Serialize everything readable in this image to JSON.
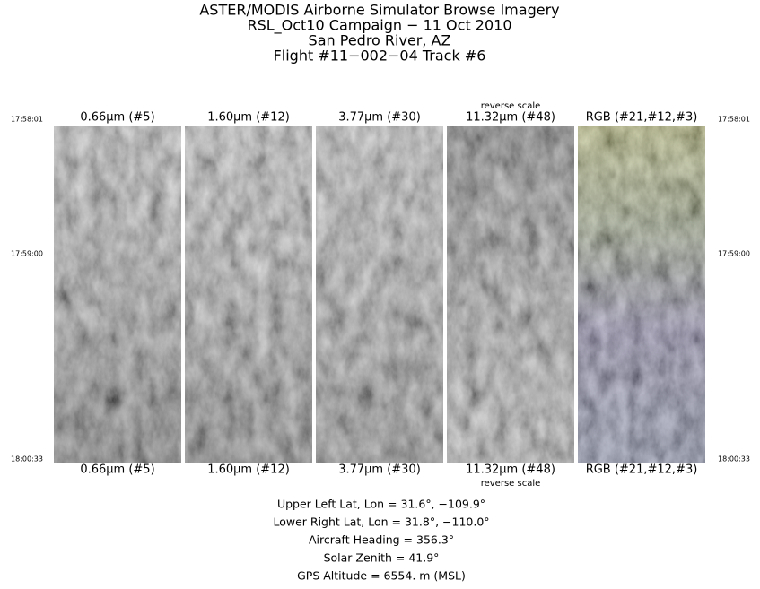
{
  "header": {
    "lines": [
      "ASTER/MODIS Airborne Simulator Browse Imagery",
      "RSL_Oct10 Campaign − 11 Oct 2010",
      "San Pedro River, AZ",
      "Flight #11−002−04 Track #6"
    ]
  },
  "panels": [
    {
      "label": "0.66µm (#5)"
    },
    {
      "label": "1.60µm (#12)"
    },
    {
      "label": "3.77µm (#30)"
    },
    {
      "label": "11.32µm (#48)",
      "note": "reverse scale"
    },
    {
      "label": "RGB (#21,#12,#3)"
    }
  ],
  "times": [
    "17:58:01",
    "17:59:00",
    "18:00:33"
  ],
  "info": [
    "Upper Left Lat, Lon =   31.6°, −109.9°",
    "Lower Right Lat, Lon =   31.8°, −110.0°",
    "Aircraft Heading =  356.3°",
    "Solar Zenith =   41.9°",
    "GPS Altitude =   6554. m (MSL)"
  ]
}
